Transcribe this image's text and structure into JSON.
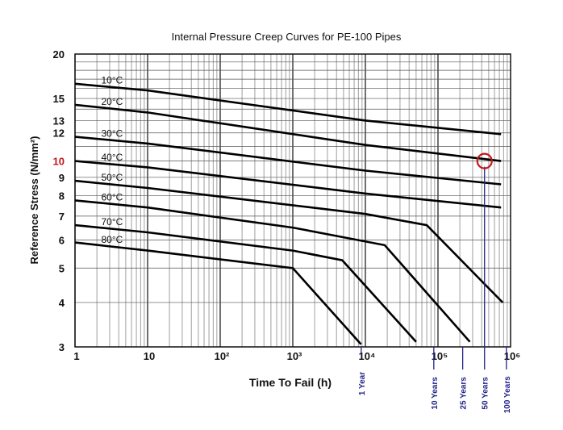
{
  "chart_data": {
    "type": "line",
    "title": "Internal Pressure Creep Curves for PE-100 Pipes",
    "xlabel": "Time To Fail (h)",
    "ylabel": "Reference Stress (N/mm²)",
    "xscale": "log",
    "yscale": "log",
    "xlim": [
      1,
      1000000
    ],
    "ylim": [
      3,
      20
    ],
    "grid": true,
    "x_ticks": [
      {
        "value": 1,
        "label": "1"
      },
      {
        "value": 10,
        "label": "10"
      },
      {
        "value": 100,
        "label": "10²"
      },
      {
        "value": 1000,
        "label": "10³"
      },
      {
        "value": 10000,
        "label": "10⁴"
      },
      {
        "value": 100000,
        "label": "10⁵"
      },
      {
        "value": 1000000,
        "label": "10⁶"
      }
    ],
    "y_ticks": [
      {
        "value": 20,
        "label": "20"
      },
      {
        "value": 15,
        "label": "15"
      },
      {
        "value": 13,
        "label": "13"
      },
      {
        "value": 12,
        "label": "12"
      },
      {
        "value": 10,
        "label": "10",
        "highlight": true
      },
      {
        "value": 9,
        "label": "9"
      },
      {
        "value": 8,
        "label": "8"
      },
      {
        "value": 7,
        "label": "7"
      },
      {
        "value": 6,
        "label": "6"
      },
      {
        "value": 5,
        "label": "5"
      },
      {
        "value": 4,
        "label": "4"
      },
      {
        "value": 3,
        "label": "3"
      }
    ],
    "series": [
      {
        "name": "10°C",
        "points": [
          [
            1,
            16.5
          ],
          [
            10,
            15.8
          ],
          [
            10000,
            13.0
          ],
          [
            740000,
            11.9
          ]
        ]
      },
      {
        "name": "20°C",
        "points": [
          [
            1,
            14.4
          ],
          [
            10,
            13.7
          ],
          [
            10000,
            11.1
          ],
          [
            740000,
            10.0
          ]
        ]
      },
      {
        "name": "30°C",
        "points": [
          [
            1,
            11.7
          ],
          [
            10,
            11.2
          ],
          [
            10000,
            9.4
          ],
          [
            740000,
            8.6
          ]
        ]
      },
      {
        "name": "40°C",
        "points": [
          [
            1,
            10.0
          ],
          [
            10,
            9.6
          ],
          [
            10000,
            8.1
          ],
          [
            740000,
            7.4
          ]
        ]
      },
      {
        "name": "50°C",
        "points": [
          [
            1,
            8.8
          ],
          [
            10,
            8.4
          ],
          [
            10000,
            7.1
          ],
          [
            70000,
            6.6
          ],
          [
            780000,
            4.0
          ]
        ]
      },
      {
        "name": "60°C",
        "points": [
          [
            1,
            7.75
          ],
          [
            10,
            7.4
          ],
          [
            1000,
            6.5
          ],
          [
            18500,
            5.8
          ],
          [
            275000,
            3.1
          ]
        ]
      },
      {
        "name": "70°C",
        "points": [
          [
            1,
            6.6
          ],
          [
            10,
            6.3
          ],
          [
            1000,
            5.6
          ],
          [
            4800,
            5.26
          ],
          [
            50000,
            3.1
          ]
        ]
      },
      {
        "name": "80°C",
        "points": [
          [
            1,
            5.9
          ],
          [
            10,
            5.6
          ],
          [
            1000,
            5.0
          ],
          [
            8700,
            3.05
          ]
        ]
      }
    ],
    "annotations": {
      "service_life_markers": [
        {
          "label": "1 Year",
          "hours": 8760
        },
        {
          "label": "10 Years",
          "hours": 87600
        },
        {
          "label": "25 Years",
          "hours": 219000
        },
        {
          "label": "50 Years",
          "hours": 438000,
          "highlight_stress": 10
        },
        {
          "label": "100 Years",
          "hours": 876000
        }
      ],
      "highlight_color": "#c0171c",
      "marker_color": "#23238a"
    }
  }
}
